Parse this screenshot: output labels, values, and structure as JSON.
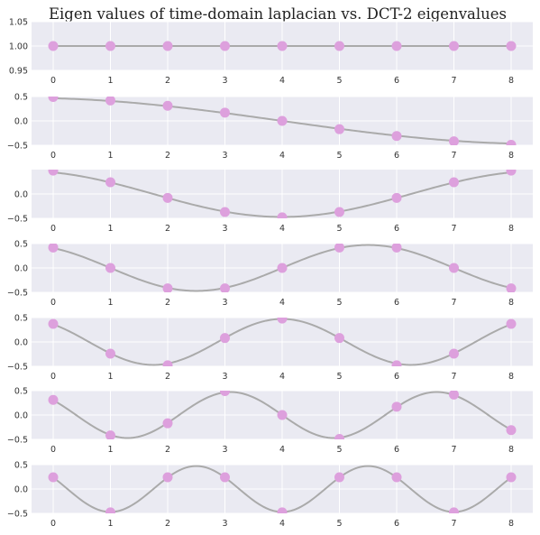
{
  "chart_data": {
    "type": "line",
    "title": "Eigen values of time-domain laplacian vs. DCT-2 eigenvalues",
    "x": [
      0,
      1,
      2,
      3,
      4,
      5,
      6,
      7,
      8
    ],
    "xticks": [
      "0",
      "1",
      "2",
      "3",
      "4",
      "5",
      "6",
      "7",
      "8"
    ],
    "grid": true,
    "colors": {
      "background": "#eaeaf2",
      "grid": "#ffffff",
      "line": "#aaaaaa",
      "marker": "#dda0dd"
    },
    "panels": [
      {
        "ylim": [
          0.95,
          1.05
        ],
        "yticks": [
          "0.95",
          "1.00",
          "1.05"
        ],
        "ytick_values": [
          0.95,
          1.0,
          1.05
        ],
        "points": [
          1,
          1,
          1,
          1,
          1,
          1,
          1,
          1,
          1
        ],
        "curve_k": 0
      },
      {
        "ylim": [
          -0.5,
          0.5
        ],
        "yticks": [
          "−0.5",
          "0.0",
          "0.5"
        ],
        "ytick_values": [
          -0.5,
          0.0,
          0.5
        ],
        "points": [
          0.49,
          0.42,
          0.31,
          0.17,
          0.0,
          -0.17,
          -0.31,
          -0.42,
          -0.49
        ],
        "curve_k": 1
      },
      {
        "ylim": [
          -0.5,
          0.5
        ],
        "yticks": [
          "−0.5",
          "0.0"
        ],
        "ytick_values": [
          -0.5,
          0.0
        ],
        "points": [
          0.48,
          0.24,
          -0.08,
          -0.37,
          -0.48,
          -0.37,
          -0.08,
          0.24,
          0.48
        ],
        "curve_k": 2
      },
      {
        "ylim": [
          -0.5,
          0.5
        ],
        "yticks": [
          "−0.5",
          "0.0",
          "0.5"
        ],
        "ytick_values": [
          -0.5,
          0.0,
          0.5
        ],
        "points": [
          0.42,
          0.0,
          -0.42,
          -0.42,
          0.0,
          0.42,
          0.42,
          0.0,
          -0.42
        ],
        "curve_k": 3
      },
      {
        "ylim": [
          -0.5,
          0.5
        ],
        "yticks": [
          "−0.5",
          "0.0",
          "0.5"
        ],
        "ytick_values": [
          -0.5,
          0.0,
          0.5
        ],
        "points": [
          0.37,
          -0.24,
          -0.48,
          0.08,
          0.48,
          0.08,
          -0.48,
          -0.24,
          0.37
        ],
        "curve_k": 4
      },
      {
        "ylim": [
          -0.5,
          0.5
        ],
        "yticks": [
          "−0.5",
          "0.0",
          "0.5"
        ],
        "ytick_values": [
          -0.5,
          0.0,
          0.5
        ],
        "points": [
          0.31,
          -0.42,
          -0.17,
          0.49,
          0.0,
          -0.49,
          0.17,
          0.42,
          -0.31
        ],
        "curve_k": 5
      },
      {
        "ylim": [
          -0.5,
          0.5
        ],
        "yticks": [
          "−0.5",
          "0.0",
          "0.5"
        ],
        "ytick_values": [
          -0.5,
          0.0,
          0.5
        ],
        "points": [
          0.24,
          -0.48,
          0.24,
          0.24,
          -0.48,
          0.24,
          0.24,
          -0.48,
          0.24
        ],
        "curve_k": 6
      }
    ]
  }
}
